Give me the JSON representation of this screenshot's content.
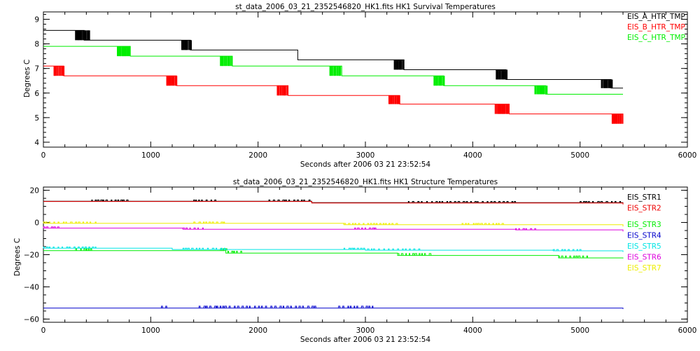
{
  "chart_data": [
    {
      "type": "line",
      "title": "st_data_2006_03_21_2352546820_HK1.fits HK1 Survival Temperatures",
      "xlabel": "Seconds after 2006 03 21 23:52:54",
      "ylabel": "Degrees C",
      "xlim": [
        0,
        6000
      ],
      "ylim": [
        3.8,
        9.3
      ],
      "x_ticks": [
        "0",
        "1000",
        "2000",
        "3000",
        "4000",
        "5000",
        "6000"
      ],
      "y_ticks": [
        "4",
        "5",
        "6",
        "7",
        "8",
        "9"
      ],
      "legend_position": "top-right",
      "series": [
        {
          "name": "EIS_A_HTR_TMP",
          "color": "#000000",
          "x": [
            0,
            300,
            380,
            1290,
            1370,
            2290,
            2370,
            3280,
            3360,
            4230,
            4310,
            5210,
            5290,
            5400
          ],
          "y": [
            8.55,
            8.55,
            8.15,
            8.15,
            7.75,
            7.75,
            7.35,
            7.35,
            6.95,
            6.95,
            6.55,
            6.55,
            6.2,
            6.2
          ],
          "noise": [
            [
              300,
              430
            ],
            [
              1290,
              1380
            ],
            [
              2290,
              2360
            ],
            [
              3270,
              3360
            ],
            [
              4220,
              4320
            ],
            [
              5200,
              5300
            ]
          ]
        },
        {
          "name": "EIS_B_HTR_TMP",
          "color": "#ff0000",
          "x": [
            0,
            100,
            190,
            1150,
            1240,
            2180,
            2280,
            3220,
            3320,
            4220,
            4340,
            5380,
            5400
          ],
          "y": [
            7.1,
            7.1,
            6.7,
            6.7,
            6.3,
            6.3,
            5.9,
            5.9,
            5.55,
            5.55,
            5.15,
            5.15,
            4.75
          ],
          "noise": [
            [
              100,
              200
            ],
            [
              1150,
              1250
            ],
            [
              2180,
              2280
            ],
            [
              3220,
              3320
            ],
            [
              4210,
              4340
            ],
            [
              5300,
              5400
            ]
          ]
        },
        {
          "name": "EIS_C_HTR_TMP",
          "color": "#00ee00",
          "x": [
            0,
            700,
            810,
            1650,
            1760,
            2680,
            2780,
            3650,
            3730,
            4580,
            4680,
            5400
          ],
          "y": [
            7.9,
            7.9,
            7.5,
            7.5,
            7.1,
            7.1,
            6.7,
            6.7,
            6.3,
            6.3,
            5.95,
            5.95
          ],
          "noise": [
            [
              690,
              810
            ],
            [
              1650,
              1760
            ],
            [
              2670,
              2780
            ],
            [
              3640,
              3740
            ],
            [
              4580,
              4700
            ]
          ]
        }
      ]
    },
    {
      "type": "line",
      "title": "st_data_2006_03_21_2352546820_HK1.fits HK1 Structure Temperatures",
      "xlabel": "Seconds after 2006 03 21 23:52:54",
      "ylabel": "Degrees C",
      "xlim": [
        0,
        6000
      ],
      "ylim": [
        -62,
        22
      ],
      "x_ticks": [
        "0",
        "1000",
        "2000",
        "3000",
        "4000",
        "5000",
        "6000"
      ],
      "y_ticks": [
        "20",
        "0",
        "−20",
        "−40",
        "−60"
      ],
      "legend_position": "right",
      "series": [
        {
          "name": "EIS_STR1",
          "color": "#000000",
          "x": [
            0,
            2500,
            5400
          ],
          "y": [
            13.2,
            12.3,
            11.4
          ],
          "noise": [
            [
              450,
              800
            ],
            [
              1400,
              1600
            ],
            [
              2100,
              2500
            ],
            [
              3400,
              4400
            ],
            [
              5000,
              5400
            ]
          ]
        },
        {
          "name": "EIS_STR2",
          "color": "#ee0000",
          "x": [
            0,
            2500,
            5400
          ],
          "y": [
            13,
            12.1,
            11.2
          ],
          "noise": []
        },
        {
          "name": "EIS_STR3",
          "color": "#00ee00",
          "x": [
            0,
            1700,
            3300,
            4800,
            5400
          ],
          "y": [
            -17.5,
            -19,
            -20.5,
            -22,
            -22.3
          ],
          "noise": [
            [
              300,
              450
            ],
            [
              1650,
              1850
            ],
            [
              3300,
              3600
            ],
            [
              4800,
              5100
            ]
          ]
        },
        {
          "name": "EIS_STR4",
          "color": "#0000cc",
          "x": [
            0,
            5400
          ],
          "y": [
            -53.2,
            -53.8
          ],
          "noise": [
            [
              1100,
              1150
            ],
            [
              1450,
              2550
            ],
            [
              2750,
              3100
            ]
          ]
        },
        {
          "name": "EIS_STR5",
          "color": "#00e5e5",
          "x": [
            0,
            1200,
            3000,
            4750,
            5400
          ],
          "y": [
            -16,
            -16.8,
            -17.2,
            -17.6,
            -18.3
          ],
          "noise": [
            [
              0,
              500
            ],
            [
              1300,
              1700
            ],
            [
              2800,
              3500
            ],
            [
              4750,
              5000
            ]
          ]
        },
        {
          "name": "EIS_STR6",
          "color": "#dd00dd",
          "x": [
            0,
            1300,
            4400,
            5400
          ],
          "y": [
            -3.5,
            -4.2,
            -4.6,
            -5.6
          ],
          "noise": [
            [
              0,
              150
            ],
            [
              1300,
              1500
            ],
            [
              2900,
              3100
            ],
            [
              4400,
              4600
            ]
          ]
        },
        {
          "name": "EIS_STR7",
          "color": "#eeee00",
          "x": [
            0,
            2800,
            5400
          ],
          "y": [
            -0.5,
            -1.4,
            -2.5
          ],
          "noise": [
            [
              0,
              500
            ],
            [
              1400,
              1700
            ],
            [
              2800,
              3300
            ],
            [
              3900,
              4300
            ]
          ]
        }
      ]
    }
  ]
}
